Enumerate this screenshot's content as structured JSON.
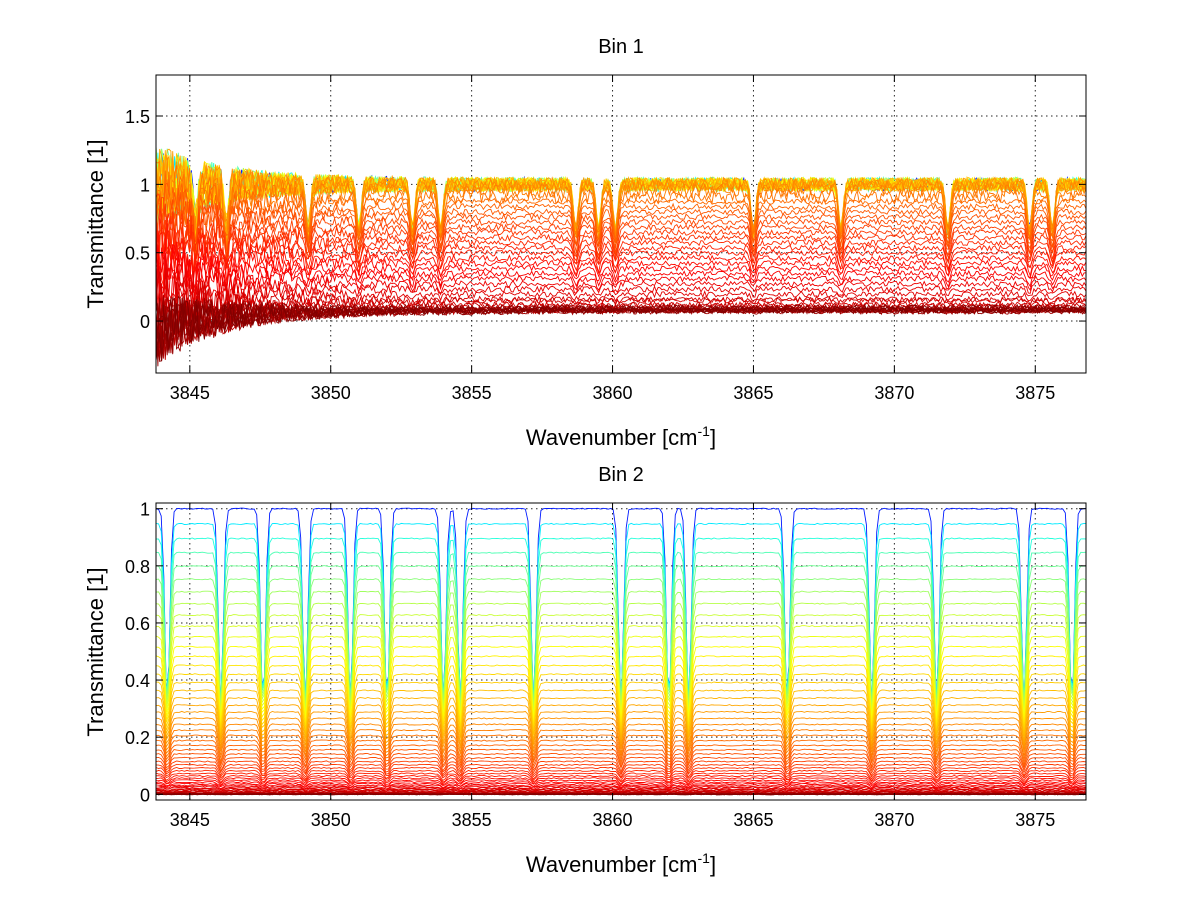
{
  "chart_data": [
    {
      "type": "line",
      "title": "Bin 1",
      "xlabel": "Wavenumber [cm",
      "xlabel_sup": "-1",
      "xlabel_end": "]",
      "ylabel": "Transmittance [1]",
      "xlim": [
        3843.8,
        3876.8
      ],
      "ylim": [
        -0.38,
        1.8
      ],
      "xticks": [
        3845,
        3850,
        3855,
        3860,
        3865,
        3870,
        3875
      ],
      "xtick_labels": [
        "3845",
        "3850",
        "3855",
        "3860",
        "3865",
        "3870",
        "3875"
      ],
      "yticks": [
        0,
        0.5,
        1,
        1.5
      ],
      "ytick_labels": [
        "0",
        "0.5",
        "1",
        "1.5"
      ],
      "grid": true,
      "colormap": "jet",
      "series_count": 60,
      "baseline_transmittance": [
        1.0,
        0.0
      ],
      "noise_level": "high at low wavenumber",
      "absorption_lines_cm-1": [
        3845.2,
        3846.3,
        3849.2,
        3851.0,
        3852.9,
        3853.9,
        3858.7,
        3859.5,
        3860.1,
        3865.0,
        3868.1,
        3871.9,
        3874.8,
        3875.6
      ]
    },
    {
      "type": "line",
      "title": "Bin 2",
      "xlabel": "Wavenumber [cm",
      "xlabel_sup": "-1",
      "xlabel_end": "]",
      "ylabel": "Transmittance [1]",
      "xlim": [
        3843.8,
        3876.8
      ],
      "ylim": [
        -0.02,
        1.02
      ],
      "xticks": [
        3845,
        3850,
        3855,
        3860,
        3865,
        3870,
        3875
      ],
      "xtick_labels": [
        "3845",
        "3850",
        "3855",
        "3860",
        "3865",
        "3870",
        "3875"
      ],
      "yticks": [
        0,
        0.2,
        0.4,
        0.6,
        0.8,
        1
      ],
      "ytick_labels": [
        "0",
        "0.2",
        "0.4",
        "0.6",
        "0.8",
        "1"
      ],
      "grid": true,
      "colormap": "jet",
      "series_count": 60,
      "baseline_transmittance": [
        1.0,
        0.0
      ],
      "absorption_lines_cm-1": [
        3844.2,
        3846.1,
        3847.6,
        3849.1,
        3850.7,
        3852.0,
        3854.0,
        3854.6,
        3857.2,
        3860.3,
        3862.0,
        3862.7,
        3866.2,
        3869.2,
        3871.5,
        3874.6,
        3876.3
      ]
    }
  ]
}
